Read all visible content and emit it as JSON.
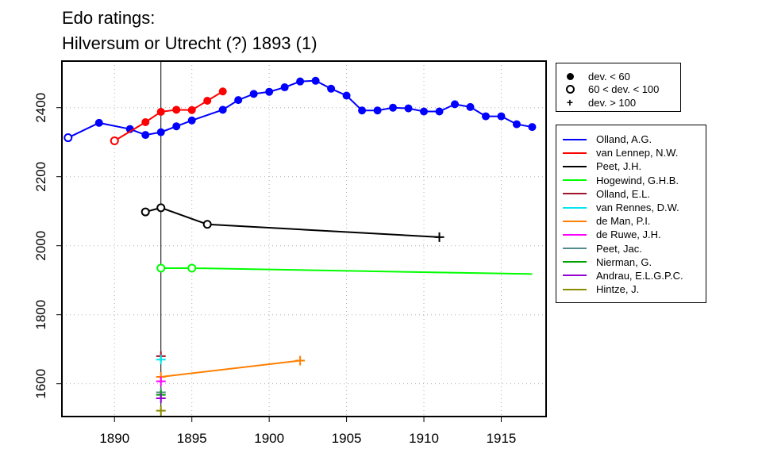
{
  "title_line1": "Edo ratings:",
  "title_line2": "Hilversum or Utrecht (?) 1893 (1)",
  "deviation_legend": [
    {
      "symbol": "filled-circle",
      "label": "dev. < 60"
    },
    {
      "symbol": "open-circle",
      "label": "60 < dev. < 100"
    },
    {
      "symbol": "plus",
      "label": "dev. > 100"
    }
  ],
  "chart_data": {
    "type": "line",
    "title": "Edo ratings: Hilversum or Utrecht (?) 1893 (1)",
    "xlim": [
      1886.6,
      1917.9
    ],
    "ylim": [
      1505,
      2535
    ],
    "x_ticks": [
      1890,
      1895,
      1900,
      1905,
      1910,
      1915
    ],
    "y_ticks": [
      1600,
      1800,
      2000,
      2200,
      2400
    ],
    "grid": true,
    "event_year": 1893,
    "legend_placement": "right, outside plot",
    "series": [
      {
        "name": "Olland, A.G.",
        "color": "#0000ff",
        "points": [
          {
            "x": 1887,
            "y": 2313,
            "dev": "mid"
          },
          {
            "x": 1889,
            "y": 2356,
            "dev": "low"
          },
          {
            "x": 1891,
            "y": 2338,
            "dev": "low"
          },
          {
            "x": 1892,
            "y": 2321,
            "dev": "low"
          },
          {
            "x": 1893,
            "y": 2329,
            "dev": "low"
          },
          {
            "x": 1894,
            "y": 2346,
            "dev": "low"
          },
          {
            "x": 1895,
            "y": 2363,
            "dev": "low"
          },
          {
            "x": 1897,
            "y": 2394,
            "dev": "low"
          },
          {
            "x": 1898,
            "y": 2422,
            "dev": "low"
          },
          {
            "x": 1899,
            "y": 2440,
            "dev": "low"
          },
          {
            "x": 1900,
            "y": 2446,
            "dev": "low"
          },
          {
            "x": 1901,
            "y": 2459,
            "dev": "low"
          },
          {
            "x": 1902,
            "y": 2476,
            "dev": "low"
          },
          {
            "x": 1903,
            "y": 2478,
            "dev": "low"
          },
          {
            "x": 1904,
            "y": 2455,
            "dev": "low"
          },
          {
            "x": 1905,
            "y": 2435,
            "dev": "low"
          },
          {
            "x": 1906,
            "y": 2392,
            "dev": "low"
          },
          {
            "x": 1907,
            "y": 2392,
            "dev": "low"
          },
          {
            "x": 1908,
            "y": 2400,
            "dev": "low"
          },
          {
            "x": 1909,
            "y": 2398,
            "dev": "low"
          },
          {
            "x": 1910,
            "y": 2389,
            "dev": "low"
          },
          {
            "x": 1911,
            "y": 2389,
            "dev": "low"
          },
          {
            "x": 1912,
            "y": 2410,
            "dev": "low"
          },
          {
            "x": 1913,
            "y": 2402,
            "dev": "low"
          },
          {
            "x": 1914,
            "y": 2375,
            "dev": "low"
          },
          {
            "x": 1915,
            "y": 2375,
            "dev": "low"
          },
          {
            "x": 1916,
            "y": 2352,
            "dev": "low"
          },
          {
            "x": 1917,
            "y": 2344,
            "dev": "low"
          }
        ]
      },
      {
        "name": "van Lennep, N.W.",
        "color": "#ff0000",
        "points": [
          {
            "x": 1890,
            "y": 2304,
            "dev": "mid"
          },
          {
            "x": 1892,
            "y": 2358,
            "dev": "low"
          },
          {
            "x": 1893,
            "y": 2388,
            "dev": "low"
          },
          {
            "x": 1894,
            "y": 2394,
            "dev": "low"
          },
          {
            "x": 1895,
            "y": 2393,
            "dev": "low"
          },
          {
            "x": 1896,
            "y": 2420,
            "dev": "low"
          },
          {
            "x": 1897,
            "y": 2447,
            "dev": "low"
          }
        ]
      },
      {
        "name": "Peet, J.H.",
        "color": "#000000",
        "points": [
          {
            "x": 1892,
            "y": 2098,
            "dev": "mid"
          },
          {
            "x": 1893,
            "y": 2110,
            "dev": "mid"
          },
          {
            "x": 1896,
            "y": 2062,
            "dev": "mid"
          },
          {
            "x": 1911,
            "y": 2025,
            "dev": "high"
          }
        ]
      },
      {
        "name": "Hogewind, G.H.B.",
        "color": "#00ff00",
        "points": [
          {
            "x": 1893,
            "y": 1935,
            "dev": "mid"
          },
          {
            "x": 1895,
            "y": 1935,
            "dev": "mid"
          },
          {
            "x": 1917,
            "y": 1918,
            "dev": "none"
          }
        ]
      },
      {
        "name": "Olland, E.L.",
        "color": "#a0142a",
        "points": [
          {
            "x": 1893,
            "y": 1680,
            "dev": "high"
          }
        ]
      },
      {
        "name": "van Rennes, D.W.",
        "color": "#00e5ee",
        "points": [
          {
            "x": 1893,
            "y": 1670,
            "dev": "high"
          }
        ]
      },
      {
        "name": "de Man, P.I.",
        "color": "#ff7f00",
        "points": [
          {
            "x": 1893,
            "y": 1620,
            "dev": "high"
          },
          {
            "x": 1902,
            "y": 1667,
            "dev": "high"
          }
        ]
      },
      {
        "name": "de Ruwe, J.H.",
        "color": "#ff00ff",
        "points": [
          {
            "x": 1893,
            "y": 1607,
            "dev": "high"
          }
        ]
      },
      {
        "name": "Peet, Jac.",
        "color": "#528b8b",
        "points": [
          {
            "x": 1893,
            "y": 1575,
            "dev": "high"
          }
        ]
      },
      {
        "name": "Nierman, G.",
        "color": "#00a000",
        "points": [
          {
            "x": 1893,
            "y": 1568,
            "dev": "high"
          }
        ]
      },
      {
        "name": "Andrau, E.L.G.P.C.",
        "color": "#9400d3",
        "points": [
          {
            "x": 1893,
            "y": 1558,
            "dev": "high"
          }
        ]
      },
      {
        "name": "Hintze, J.",
        "color": "#8b8b00",
        "points": [
          {
            "x": 1893,
            "y": 1522,
            "dev": "high"
          }
        ]
      }
    ]
  }
}
